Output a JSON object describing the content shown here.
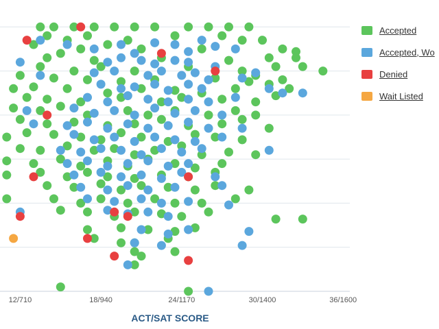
{
  "chart_data": {
    "type": "scatter",
    "title": "",
    "xlabel": "ACT/SAT SCORE",
    "ylabel": "",
    "x_axis": {
      "min": 10.5,
      "max": 36.5,
      "ticks": [
        {
          "value": 12,
          "label": "12/710"
        },
        {
          "value": 18,
          "label": "18/940"
        },
        {
          "value": 24,
          "label": "24/1170"
        },
        {
          "value": 30,
          "label": "30/1400"
        },
        {
          "value": 36,
          "label": "36/1600"
        }
      ]
    },
    "y_axis": {
      "min": 1.0,
      "max": 4.15,
      "gridlines": [
        1.0,
        1.5,
        2.0,
        2.5,
        3.0,
        3.5,
        4.0
      ]
    },
    "grid": true,
    "legend_position": "right",
    "series": [
      {
        "name": "Accepted",
        "color": "#5cc55c",
        "points": [
          [
            13.5,
            4.0
          ],
          [
            14.5,
            4.0
          ],
          [
            16.0,
            4.0
          ],
          [
            17.5,
            4.0
          ],
          [
            19.0,
            4.0
          ],
          [
            20.5,
            4.0
          ],
          [
            22.0,
            4.0
          ],
          [
            24.5,
            4.0
          ],
          [
            26.0,
            4.0
          ],
          [
            27.5,
            4.0
          ],
          [
            29.0,
            4.0
          ],
          [
            14.0,
            3.9
          ],
          [
            15.5,
            3.85
          ],
          [
            17.0,
            3.9
          ],
          [
            20.0,
            3.85
          ],
          [
            23.5,
            3.9
          ],
          [
            27.0,
            3.9
          ],
          [
            28.5,
            3.85
          ],
          [
            30.0,
            3.85
          ],
          [
            13.0,
            3.8
          ],
          [
            16.5,
            3.75
          ],
          [
            18.5,
            3.8
          ],
          [
            21.0,
            3.75
          ],
          [
            25.5,
            3.75
          ],
          [
            31.5,
            3.75
          ],
          [
            32.5,
            3.72
          ],
          [
            14.0,
            3.65
          ],
          [
            15.0,
            3.7
          ],
          [
            17.5,
            3.62
          ],
          [
            22.5,
            3.65
          ],
          [
            27.5,
            3.62
          ],
          [
            30.5,
            3.65
          ],
          [
            32.5,
            3.65
          ],
          [
            13.5,
            3.55
          ],
          [
            16.0,
            3.5
          ],
          [
            18.0,
            3.55
          ],
          [
            20.5,
            3.5
          ],
          [
            24.5,
            3.55
          ],
          [
            28.5,
            3.5
          ],
          [
            31.0,
            3.55
          ],
          [
            33.0,
            3.55
          ],
          [
            34.5,
            3.5
          ],
          [
            29.5,
            3.45
          ],
          [
            12.0,
            3.45
          ],
          [
            14.5,
            3.42
          ],
          [
            17.0,
            3.4
          ],
          [
            19.5,
            3.38
          ],
          [
            22.0,
            3.4
          ],
          [
            26.5,
            3.42
          ],
          [
            29.0,
            3.38
          ],
          [
            31.5,
            3.4
          ],
          [
            11.5,
            3.3
          ],
          [
            13.0,
            3.32
          ],
          [
            15.5,
            3.3
          ],
          [
            18.5,
            3.25
          ],
          [
            21.0,
            3.3
          ],
          [
            23.5,
            3.28
          ],
          [
            25.5,
            3.25
          ],
          [
            28.0,
            3.3
          ],
          [
            30.5,
            3.35
          ],
          [
            32.0,
            3.3
          ],
          [
            12.5,
            3.2
          ],
          [
            14.0,
            3.18
          ],
          [
            16.5,
            3.15
          ],
          [
            19.5,
            3.2
          ],
          [
            22.5,
            3.15
          ],
          [
            24.0,
            3.2
          ],
          [
            27.0,
            3.18
          ],
          [
            29.5,
            3.15
          ],
          [
            31.0,
            3.22
          ],
          [
            11.5,
            3.08
          ],
          [
            13.5,
            3.05
          ],
          [
            15.0,
            3.1
          ],
          [
            17.0,
            3.0
          ],
          [
            20.0,
            3.05
          ],
          [
            21.5,
            3.0
          ],
          [
            23.5,
            3.05
          ],
          [
            26.0,
            3.0
          ],
          [
            28.0,
            3.05
          ],
          [
            29.5,
            3.0
          ],
          [
            12.0,
            2.95
          ],
          [
            14.0,
            2.9
          ],
          [
            16.0,
            2.92
          ],
          [
            18.5,
            2.88
          ],
          [
            20.5,
            2.9
          ],
          [
            22.5,
            2.95
          ],
          [
            24.5,
            2.88
          ],
          [
            27.0,
            2.9
          ],
          [
            28.5,
            2.95
          ],
          [
            30.5,
            2.85
          ],
          [
            11.0,
            2.75
          ],
          [
            12.5,
            2.8
          ],
          [
            14.5,
            2.78
          ],
          [
            16.5,
            2.75
          ],
          [
            18.0,
            2.72
          ],
          [
            19.5,
            2.8
          ],
          [
            21.0,
            2.75
          ],
          [
            23.0,
            2.7
          ],
          [
            25.0,
            2.78
          ],
          [
            26.5,
            2.75
          ],
          [
            28.5,
            2.72
          ],
          [
            12.0,
            2.62
          ],
          [
            13.5,
            2.6
          ],
          [
            15.5,
            2.65
          ],
          [
            17.5,
            2.6
          ],
          [
            19.0,
            2.62
          ],
          [
            20.5,
            2.55
          ],
          [
            22.0,
            2.6
          ],
          [
            24.0,
            2.65
          ],
          [
            25.5,
            2.55
          ],
          [
            27.5,
            2.58
          ],
          [
            29.5,
            2.55
          ],
          [
            11.0,
            2.48
          ],
          [
            13.0,
            2.45
          ],
          [
            15.0,
            2.5
          ],
          [
            16.5,
            2.42
          ],
          [
            18.5,
            2.48
          ],
          [
            20.0,
            2.42
          ],
          [
            21.5,
            2.5
          ],
          [
            23.5,
            2.45
          ],
          [
            25.0,
            2.4
          ],
          [
            27.0,
            2.45
          ],
          [
            11.0,
            2.32
          ],
          [
            13.5,
            2.35
          ],
          [
            15.5,
            2.3
          ],
          [
            17.0,
            2.35
          ],
          [
            18.5,
            2.3
          ],
          [
            20.5,
            2.28
          ],
          [
            22.5,
            2.32
          ],
          [
            24.5,
            2.3
          ],
          [
            26.5,
            2.35
          ],
          [
            14.0,
            2.2
          ],
          [
            16.0,
            2.18
          ],
          [
            18.0,
            2.22
          ],
          [
            19.5,
            2.15
          ],
          [
            21.0,
            2.2
          ],
          [
            23.0,
            2.18
          ],
          [
            25.0,
            2.15
          ],
          [
            26.5,
            2.2
          ],
          [
            29.0,
            2.15
          ],
          [
            11.0,
            2.05
          ],
          [
            14.5,
            2.05
          ],
          [
            16.5,
            2.0
          ],
          [
            18.0,
            2.05
          ],
          [
            20.0,
            2.0
          ],
          [
            22.0,
            2.05
          ],
          [
            23.5,
            2.0
          ],
          [
            25.5,
            2.0
          ],
          [
            28.0,
            2.05
          ],
          [
            15.0,
            1.92
          ],
          [
            17.0,
            1.9
          ],
          [
            19.0,
            1.85
          ],
          [
            20.5,
            1.9
          ],
          [
            22.5,
            1.88
          ],
          [
            24.0,
            1.85
          ],
          [
            26.0,
            1.9
          ],
          [
            31.0,
            1.82
          ],
          [
            33.0,
            1.82
          ],
          [
            17.0,
            1.7
          ],
          [
            19.5,
            1.72
          ],
          [
            21.5,
            1.7
          ],
          [
            23.5,
            1.68
          ],
          [
            25.0,
            1.72
          ],
          [
            17.5,
            1.6
          ],
          [
            19.5,
            1.55
          ],
          [
            20.5,
            1.55
          ],
          [
            23.0,
            1.6
          ],
          [
            20.5,
            1.45
          ],
          [
            21.0,
            1.4
          ],
          [
            23.5,
            1.45
          ],
          [
            20.5,
            1.3
          ],
          [
            15.0,
            1.05
          ],
          [
            24.5,
            1.0
          ]
        ]
      },
      {
        "name": "Accepted, Wo",
        "color": "#5ba7dd",
        "points": [
          [
            13.5,
            3.85
          ],
          [
            15.5,
            3.8
          ],
          [
            17.5,
            3.75
          ],
          [
            19.5,
            3.8
          ],
          [
            20.5,
            3.7
          ],
          [
            22.0,
            3.82
          ],
          [
            23.5,
            3.8
          ],
          [
            24.5,
            3.72
          ],
          [
            25.5,
            3.85
          ],
          [
            26.5,
            3.78
          ],
          [
            28.0,
            3.75
          ],
          [
            12.0,
            3.6
          ],
          [
            18.5,
            3.6
          ],
          [
            19.5,
            3.65
          ],
          [
            21.0,
            3.62
          ],
          [
            22.0,
            3.58
          ],
          [
            23.5,
            3.62
          ],
          [
            24.5,
            3.6
          ],
          [
            26.5,
            3.55
          ],
          [
            13.5,
            3.45
          ],
          [
            17.5,
            3.48
          ],
          [
            19.0,
            3.5
          ],
          [
            21.5,
            3.45
          ],
          [
            22.5,
            3.5
          ],
          [
            24.0,
            3.45
          ],
          [
            25.0,
            3.48
          ],
          [
            26.0,
            3.4
          ],
          [
            28.5,
            3.42
          ],
          [
            29.5,
            3.48
          ],
          [
            18.0,
            3.35
          ],
          [
            19.5,
            3.3
          ],
          [
            20.5,
            3.32
          ],
          [
            22.0,
            3.35
          ],
          [
            23.0,
            3.28
          ],
          [
            24.5,
            3.35
          ],
          [
            25.5,
            3.3
          ],
          [
            30.5,
            3.3
          ],
          [
            31.5,
            3.25
          ],
          [
            33.0,
            3.25
          ],
          [
            17.0,
            3.2
          ],
          [
            18.5,
            3.15
          ],
          [
            20.0,
            3.22
          ],
          [
            21.5,
            3.18
          ],
          [
            23.0,
            3.15
          ],
          [
            24.5,
            3.18
          ],
          [
            26.0,
            3.15
          ],
          [
            28.0,
            3.2
          ],
          [
            12.5,
            3.05
          ],
          [
            16.0,
            3.08
          ],
          [
            17.5,
            3.02
          ],
          [
            19.0,
            3.05
          ],
          [
            20.5,
            3.0
          ],
          [
            22.0,
            3.08
          ],
          [
            23.5,
            3.02
          ],
          [
            25.0,
            3.05
          ],
          [
            27.0,
            3.0
          ],
          [
            13.0,
            2.9
          ],
          [
            15.5,
            2.88
          ],
          [
            17.0,
            2.92
          ],
          [
            18.5,
            2.85
          ],
          [
            20.0,
            2.9
          ],
          [
            21.5,
            2.85
          ],
          [
            23.0,
            2.88
          ],
          [
            24.5,
            2.92
          ],
          [
            26.0,
            2.85
          ],
          [
            28.5,
            2.85
          ],
          [
            16.0,
            2.78
          ],
          [
            17.5,
            2.72
          ],
          [
            19.0,
            2.75
          ],
          [
            20.5,
            2.7
          ],
          [
            22.0,
            2.75
          ],
          [
            23.5,
            2.72
          ],
          [
            25.0,
            2.7
          ],
          [
            27.0,
            2.75
          ],
          [
            15.0,
            2.6
          ],
          [
            16.5,
            2.58
          ],
          [
            18.0,
            2.62
          ],
          [
            19.5,
            2.6
          ],
          [
            21.0,
            2.55
          ],
          [
            22.5,
            2.62
          ],
          [
            24.0,
            2.58
          ],
          [
            25.5,
            2.62
          ],
          [
            30.5,
            2.6
          ],
          [
            15.5,
            2.45
          ],
          [
            17.0,
            2.48
          ],
          [
            18.5,
            2.42
          ],
          [
            20.0,
            2.45
          ],
          [
            21.5,
            2.48
          ],
          [
            23.0,
            2.42
          ],
          [
            24.5,
            2.45
          ],
          [
            16.0,
            2.32
          ],
          [
            18.0,
            2.35
          ],
          [
            19.5,
            2.3
          ],
          [
            21.0,
            2.32
          ],
          [
            22.5,
            2.28
          ],
          [
            24.0,
            2.35
          ],
          [
            26.5,
            2.3
          ],
          [
            16.5,
            2.18
          ],
          [
            18.5,
            2.15
          ],
          [
            20.0,
            2.2
          ],
          [
            21.5,
            2.15
          ],
          [
            23.5,
            2.18
          ],
          [
            27.0,
            2.2
          ],
          [
            17.0,
            2.05
          ],
          [
            19.0,
            2.02
          ],
          [
            21.0,
            2.05
          ],
          [
            22.5,
            2.0
          ],
          [
            24.5,
            2.02
          ],
          [
            27.5,
            1.98
          ],
          [
            12.0,
            1.9
          ],
          [
            18.5,
            1.92
          ],
          [
            20.0,
            1.88
          ],
          [
            21.5,
            1.9
          ],
          [
            23.0,
            1.85
          ],
          [
            21.0,
            1.7
          ],
          [
            23.0,
            1.65
          ],
          [
            24.5,
            1.7
          ],
          [
            29.0,
            1.68
          ],
          [
            20.5,
            1.55
          ],
          [
            22.5,
            1.52
          ],
          [
            28.5,
            1.52
          ],
          [
            20.0,
            1.3
          ],
          [
            26.0,
            1.0
          ]
        ]
      },
      {
        "name": "Denied",
        "color": "#e84040",
        "points": [
          [
            16.5,
            4.0
          ],
          [
            12.5,
            3.85
          ],
          [
            22.5,
            3.7
          ],
          [
            26.5,
            3.5
          ],
          [
            14.0,
            3.0
          ],
          [
            13.0,
            2.3
          ],
          [
            24.5,
            2.3
          ],
          [
            12.0,
            1.85
          ],
          [
            20.0,
            1.85
          ],
          [
            19.0,
            1.9
          ],
          [
            17.0,
            1.6
          ],
          [
            19.0,
            1.4
          ],
          [
            24.5,
            1.35
          ]
        ]
      },
      {
        "name": "Wait Listed",
        "color": "#f5a742",
        "points": [
          [
            11.5,
            1.6
          ]
        ]
      }
    ]
  }
}
